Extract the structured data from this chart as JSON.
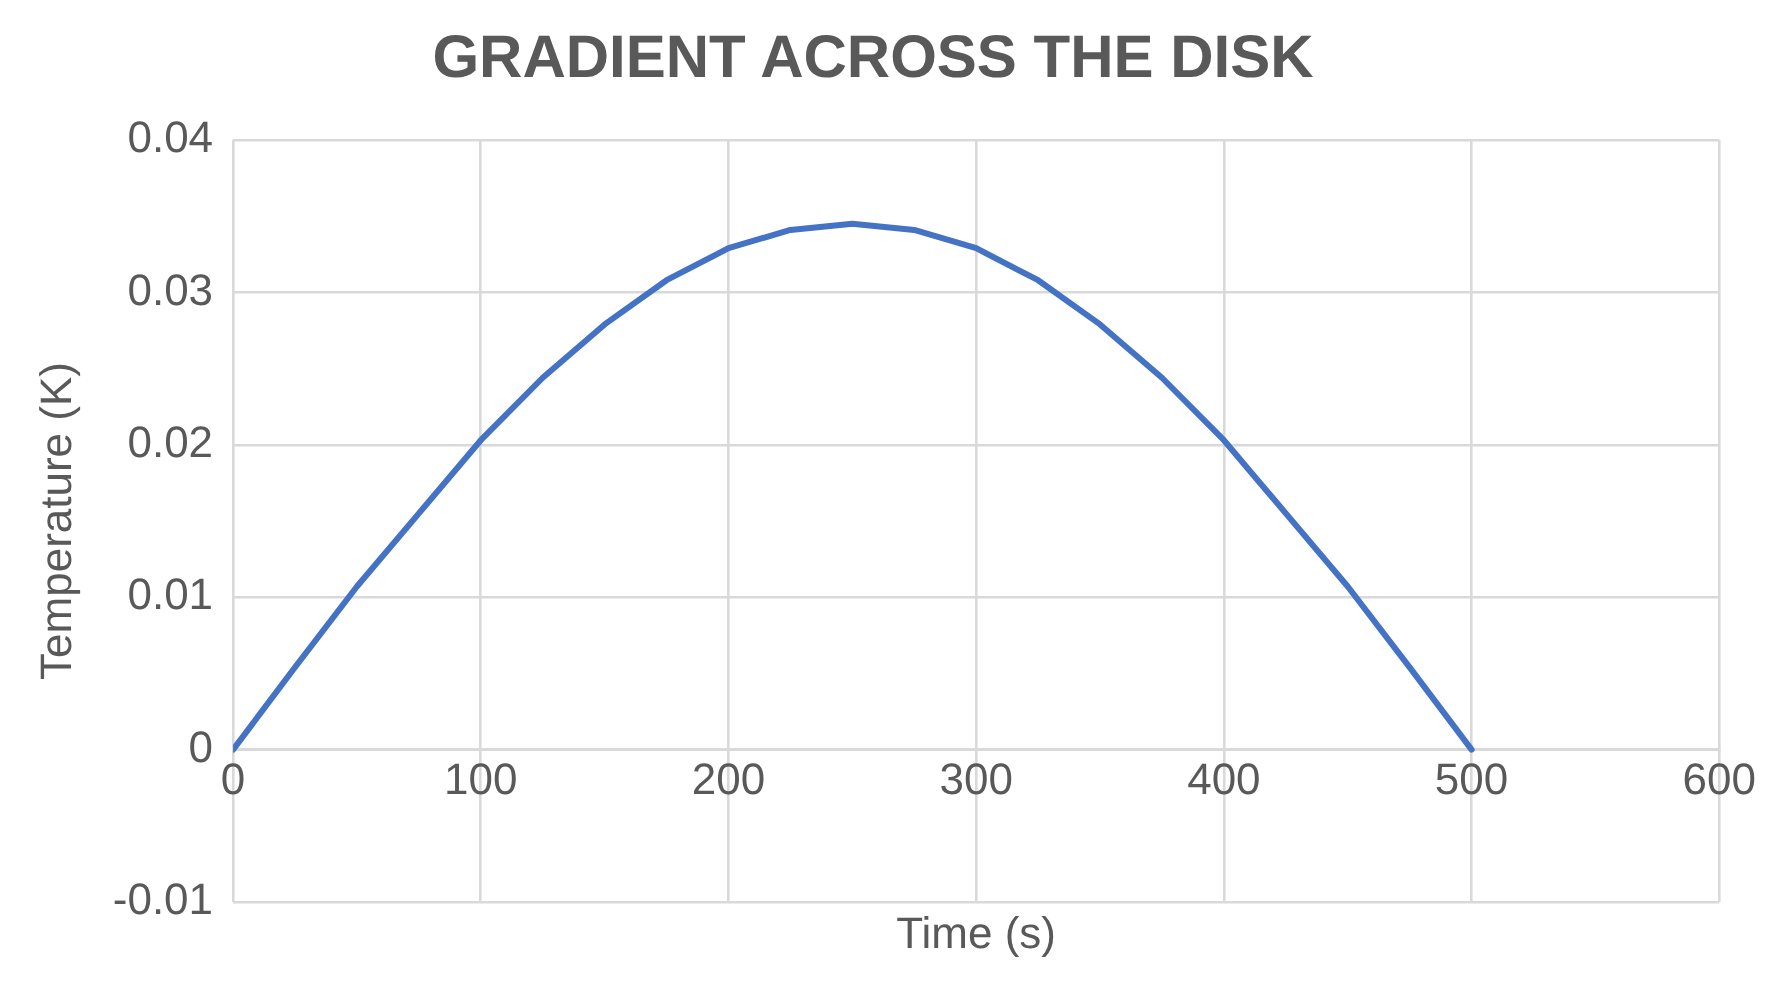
{
  "chart_data": {
    "type": "line",
    "title": "GRADIENT ACROSS THE DISK",
    "xlabel": "Time (s)",
    "ylabel": "Temperature (K)",
    "x": [
      0,
      25,
      50,
      75,
      100,
      125,
      150,
      175,
      200,
      225,
      250,
      275,
      300,
      325,
      350,
      375,
      400,
      425,
      450,
      475,
      500
    ],
    "series": [
      {
        "color": "#4472c4",
        "values": [
          0,
          0.0054,
          0.0107,
          0.0155,
          0.0203,
          0.0244,
          0.0279,
          0.0308,
          0.0329,
          0.0341,
          0.0345,
          0.0341,
          0.0329,
          0.0308,
          0.0279,
          0.0244,
          0.0203,
          0.0155,
          0.0107,
          0.0054,
          0
        ]
      }
    ],
    "xlim": [
      0,
      600
    ],
    "xticks": [
      0,
      100,
      200,
      300,
      400,
      500,
      600
    ],
    "ylim": [
      -0.01,
      0.04
    ],
    "yticks": [
      -0.01,
      0,
      0.01,
      0.02,
      0.03,
      0.04
    ],
    "grid": true,
    "legend": false,
    "marker": "none",
    "line_style": "solid"
  }
}
